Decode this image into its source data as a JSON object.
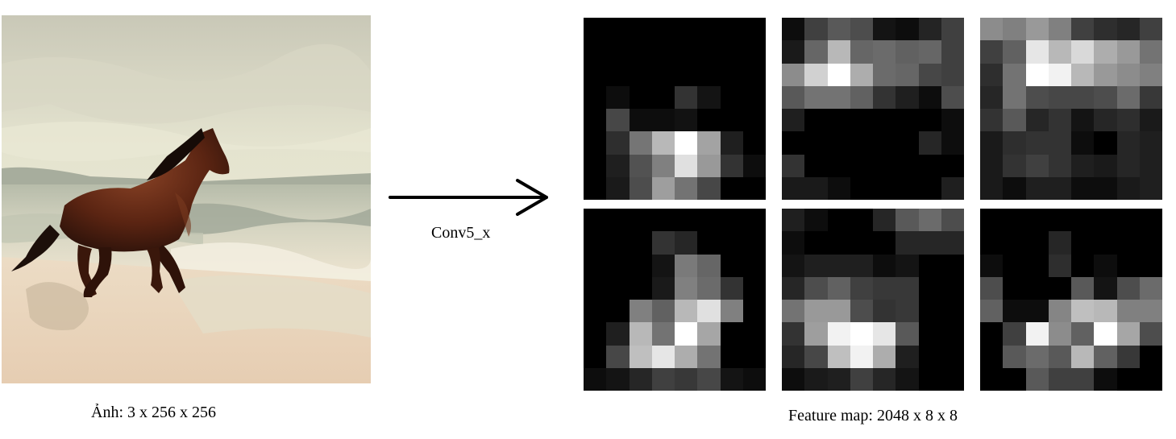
{
  "input_image": {
    "caption": "Ảnh: 3 x 256 x 256",
    "subject": "horse galloping on a beach"
  },
  "arrow": {
    "label": "Conv5_x"
  },
  "feature_maps": {
    "caption": "Feature map: 2048 x 8 x 8",
    "maps": [
      {
        "activations": [
          [
            0,
            0,
            0,
            0,
            0,
            0,
            0,
            0
          ],
          [
            0,
            0,
            0,
            0,
            0,
            0,
            0,
            0
          ],
          [
            0,
            0,
            0,
            0,
            0,
            0,
            0,
            0
          ],
          [
            0,
            0.05,
            0,
            0,
            0.2,
            0.08,
            0,
            0
          ],
          [
            0,
            0.28,
            0.05,
            0.05,
            0.07,
            0,
            0,
            0
          ],
          [
            0,
            0.18,
            0.46,
            0.72,
            1.0,
            0.64,
            0.12,
            0
          ],
          [
            0,
            0.12,
            0.32,
            0.5,
            0.88,
            0.6,
            0.2,
            0.05
          ],
          [
            0,
            0.1,
            0.3,
            0.62,
            0.45,
            0.28,
            0,
            0
          ]
        ]
      },
      {
        "activations": [
          [
            0.05,
            0.25,
            0.35,
            0.3,
            0.08,
            0.05,
            0.14,
            0.25
          ],
          [
            0.1,
            0.4,
            0.72,
            0.4,
            0.42,
            0.38,
            0.4,
            0.25
          ],
          [
            0.55,
            0.82,
            1.0,
            0.68,
            0.42,
            0.4,
            0.28,
            0.25
          ],
          [
            0.35,
            0.45,
            0.45,
            0.38,
            0.2,
            0.12,
            0.05,
            0.3
          ],
          [
            0.12,
            0,
            0,
            0,
            0,
            0,
            0,
            0.05
          ],
          [
            0,
            0,
            0,
            0,
            0,
            0,
            0.15,
            0.05
          ],
          [
            0.2,
            0,
            0,
            0,
            0,
            0,
            0,
            0
          ],
          [
            0.1,
            0.1,
            0.05,
            0,
            0,
            0,
            0,
            0.12
          ]
        ]
      },
      {
        "activations": [
          [
            0.55,
            0.5,
            0.6,
            0.5,
            0.25,
            0.18,
            0.15,
            0.25
          ],
          [
            0.25,
            0.38,
            0.9,
            0.72,
            0.85,
            0.68,
            0.6,
            0.45
          ],
          [
            0.18,
            0.45,
            1.0,
            0.95,
            0.72,
            0.6,
            0.55,
            0.5
          ],
          [
            0.15,
            0.45,
            0.3,
            0.28,
            0.28,
            0.3,
            0.42,
            0.22
          ],
          [
            0.2,
            0.35,
            0.15,
            0.2,
            0.08,
            0.15,
            0.18,
            0.1
          ],
          [
            0.1,
            0.18,
            0.2,
            0.2,
            0.05,
            0,
            0.15,
            0.12
          ],
          [
            0.1,
            0.2,
            0.25,
            0.2,
            0.12,
            0.1,
            0.15,
            0.12
          ],
          [
            0.1,
            0.05,
            0.12,
            0.12,
            0.05,
            0.05,
            0.1,
            0.12
          ]
        ]
      },
      {
        "activations": [
          [
            0,
            0,
            0,
            0,
            0,
            0,
            0,
            0
          ],
          [
            0,
            0,
            0,
            0.2,
            0.15,
            0,
            0,
            0
          ],
          [
            0,
            0,
            0,
            0.08,
            0.48,
            0.4,
            0,
            0
          ],
          [
            0,
            0,
            0,
            0.1,
            0.5,
            0.42,
            0.2,
            0
          ],
          [
            0,
            0,
            0.5,
            0.38,
            0.72,
            0.88,
            0.5,
            0
          ],
          [
            0,
            0.12,
            0.72,
            0.45,
            1.0,
            0.65,
            0,
            0
          ],
          [
            0,
            0.28,
            0.75,
            0.9,
            0.68,
            0.45,
            0,
            0
          ],
          [
            0.05,
            0.08,
            0.15,
            0.25,
            0.22,
            0.28,
            0.08,
            0.05
          ]
        ]
      },
      {
        "activations": [
          [
            0.12,
            0.05,
            0,
            0,
            0.15,
            0.35,
            0.42,
            0.3
          ],
          [
            0.05,
            0,
            0,
            0,
            0,
            0.15,
            0.15,
            0.15
          ],
          [
            0.08,
            0.12,
            0.12,
            0.12,
            0.05,
            0.08,
            0,
            0
          ],
          [
            0.15,
            0.3,
            0.38,
            0.25,
            0.22,
            0.22,
            0,
            0
          ],
          [
            0.45,
            0.6,
            0.6,
            0.3,
            0.2,
            0.22,
            0,
            0
          ],
          [
            0.2,
            0.62,
            0.95,
            1.0,
            0.9,
            0.35,
            0,
            0
          ],
          [
            0.15,
            0.28,
            0.75,
            0.95,
            0.68,
            0.12,
            0,
            0
          ],
          [
            0.05,
            0.1,
            0.12,
            0.25,
            0.15,
            0.08,
            0,
            0
          ]
        ]
      },
      {
        "activations": [
          [
            0,
            0,
            0,
            0,
            0,
            0,
            0,
            0
          ],
          [
            0,
            0,
            0,
            0.15,
            0,
            0,
            0,
            0
          ],
          [
            0.05,
            0,
            0,
            0.18,
            0,
            0.05,
            0,
            0
          ],
          [
            0.3,
            0,
            0,
            0,
            0.35,
            0.08,
            0.3,
            0.42
          ],
          [
            0.38,
            0.05,
            0.05,
            0.52,
            0.75,
            0.72,
            0.5,
            0.5
          ],
          [
            0,
            0.25,
            0.95,
            0.55,
            0.38,
            1.0,
            0.65,
            0.3
          ],
          [
            0,
            0.35,
            0.42,
            0.35,
            0.72,
            0.38,
            0.22,
            0
          ],
          [
            0,
            0,
            0.35,
            0.25,
            0.25,
            0.05,
            0,
            0
          ]
        ]
      }
    ]
  }
}
